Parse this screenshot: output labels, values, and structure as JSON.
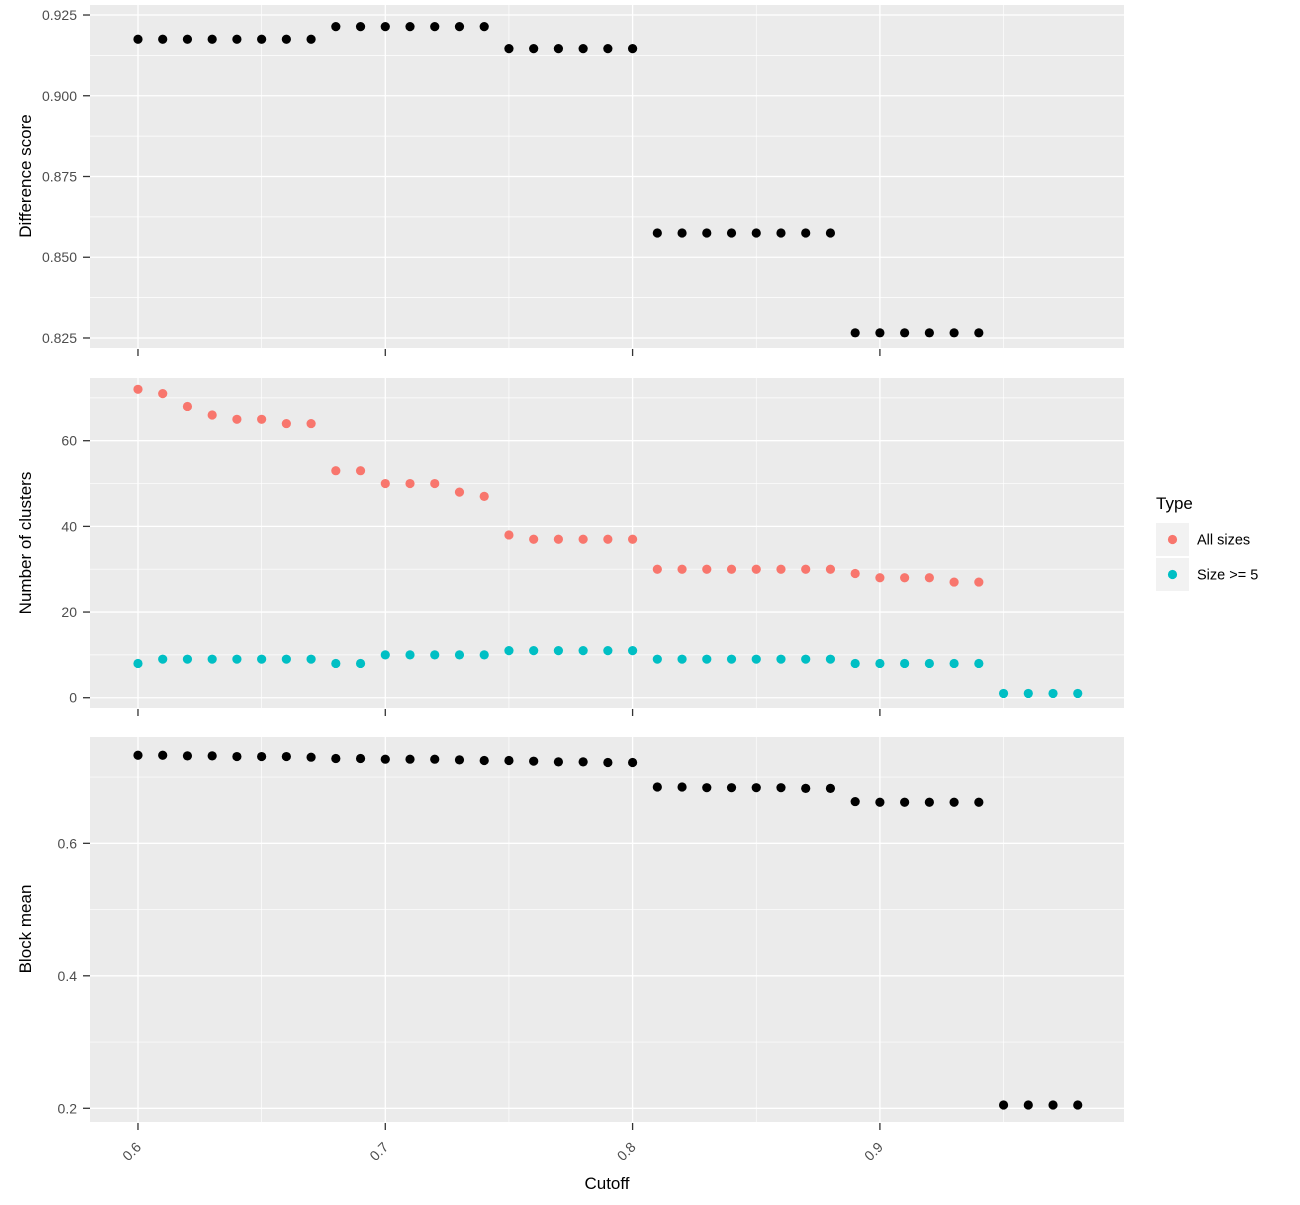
{
  "figure": {
    "background": "#FFFFFF",
    "panel_background": "#EBEBEB",
    "grid_color": "#FFFFFF",
    "tick_mark_color": "#333333",
    "tick_label_color": "#4D4D4D",
    "point_black": "#000000"
  },
  "x_axis": {
    "title": "Cutoff",
    "xlim": [
      0.5806,
      0.9987
    ],
    "major_ticks": [
      0.6,
      0.7,
      0.8,
      0.9
    ],
    "major_labels": [
      "0.6",
      "0.7",
      "0.8",
      "0.9"
    ],
    "minor_ticks": [
      0.65,
      0.75,
      0.85,
      0.95
    ]
  },
  "legend": {
    "title": "Type",
    "key_bg": "#F2F2F2",
    "items": [
      {
        "label": "All sizes",
        "color": "#F8766D"
      },
      {
        "label": "Size >= 5",
        "color": "#00BFC4"
      }
    ]
  },
  "chart_data": [
    {
      "type": "scatter",
      "ylabel": "Difference score",
      "ylim": [
        0.8219,
        0.9281
      ],
      "y_major_ticks": [
        0.925,
        0.9,
        0.875,
        0.85,
        0.825
      ],
      "y_tick_labels": [
        "0.925",
        "0.900",
        "0.875",
        "0.850",
        "0.825"
      ],
      "y_minor_ticks": [
        0.9125,
        0.8875,
        0.8625,
        0.8375
      ],
      "grid": true,
      "legend_position": "none",
      "series": [
        {
          "name": "Difference score",
          "color": "#000000",
          "x": [
            0.6,
            0.61,
            0.62,
            0.63,
            0.64,
            0.65,
            0.66,
            0.67,
            0.68,
            0.69,
            0.7,
            0.71,
            0.72,
            0.73,
            0.74,
            0.75,
            0.76,
            0.77,
            0.78,
            0.79,
            0.8,
            0.81,
            0.82,
            0.83,
            0.84,
            0.85,
            0.86,
            0.87,
            0.88,
            0.89,
            0.9,
            0.91,
            0.92,
            0.93,
            0.94
          ],
          "y": [
            0.9175,
            0.9175,
            0.9175,
            0.9175,
            0.9175,
            0.9175,
            0.9175,
            0.9175,
            0.9214,
            0.9214,
            0.9214,
            0.9214,
            0.9214,
            0.9214,
            0.9214,
            0.9146,
            0.9146,
            0.9146,
            0.9146,
            0.9146,
            0.9146,
            0.8575,
            0.8575,
            0.8575,
            0.8575,
            0.8575,
            0.8575,
            0.8575,
            0.8575,
            0.8266,
            0.8266,
            0.8266,
            0.8266,
            0.8266,
            0.8266
          ]
        }
      ]
    },
    {
      "type": "scatter",
      "ylabel": "Number of clusters",
      "ylim": [
        -2.4,
        74.64
      ],
      "y_major_ticks": [
        60,
        40,
        20,
        0
      ],
      "y_tick_labels": [
        "60",
        "40",
        "20",
        "0"
      ],
      "y_minor_ticks": [
        70,
        50,
        30,
        10
      ],
      "grid": true,
      "legend_position": "right",
      "series": [
        {
          "name": "All sizes",
          "color": "#F8766D",
          "x": [
            0.6,
            0.61,
            0.62,
            0.63,
            0.64,
            0.65,
            0.66,
            0.67,
            0.68,
            0.69,
            0.7,
            0.71,
            0.72,
            0.73,
            0.74,
            0.75,
            0.76,
            0.77,
            0.78,
            0.79,
            0.8,
            0.81,
            0.82,
            0.83,
            0.84,
            0.85,
            0.86,
            0.87,
            0.88,
            0.89,
            0.9,
            0.91,
            0.92,
            0.93,
            0.94
          ],
          "y": [
            72,
            71,
            68,
            66,
            65,
            65,
            64,
            64,
            53,
            53,
            50,
            50,
            50,
            48,
            47,
            38,
            37,
            37,
            37,
            37,
            37,
            30,
            30,
            30,
            30,
            30,
            30,
            30,
            30,
            29,
            28,
            28,
            28,
            27,
            27
          ]
        },
        {
          "name": "Size >= 5",
          "color": "#00BFC4",
          "x": [
            0.6,
            0.61,
            0.62,
            0.63,
            0.64,
            0.65,
            0.66,
            0.67,
            0.68,
            0.69,
            0.7,
            0.71,
            0.72,
            0.73,
            0.74,
            0.75,
            0.76,
            0.77,
            0.78,
            0.79,
            0.8,
            0.81,
            0.82,
            0.83,
            0.84,
            0.85,
            0.86,
            0.87,
            0.88,
            0.89,
            0.9,
            0.91,
            0.92,
            0.93,
            0.94,
            0.95,
            0.96,
            0.97,
            0.98
          ],
          "y": [
            8,
            9,
            9,
            9,
            9,
            9,
            9,
            9,
            8,
            8,
            10,
            10,
            10,
            10,
            10,
            11,
            11,
            11,
            11,
            11,
            11,
            9,
            9,
            9,
            9,
            9,
            9,
            9,
            9,
            8,
            8,
            8,
            8,
            8,
            8,
            1,
            1,
            1,
            1
          ]
        }
      ]
    },
    {
      "type": "scatter",
      "ylabel": "Block mean",
      "ylim": [
        0.1793,
        0.7605
      ],
      "y_major_ticks": [
        0.6,
        0.4,
        0.2
      ],
      "y_tick_labels": [
        "0.6",
        "0.4",
        "0.2"
      ],
      "y_minor_ticks": [
        0.7,
        0.5,
        0.3
      ],
      "grid": true,
      "legend_position": "none",
      "series": [
        {
          "name": "Block mean",
          "color": "#000000",
          "x": [
            0.6,
            0.61,
            0.62,
            0.63,
            0.64,
            0.65,
            0.66,
            0.67,
            0.68,
            0.69,
            0.7,
            0.71,
            0.72,
            0.73,
            0.74,
            0.75,
            0.76,
            0.77,
            0.78,
            0.79,
            0.8,
            0.81,
            0.82,
            0.83,
            0.84,
            0.85,
            0.86,
            0.87,
            0.88,
            0.89,
            0.9,
            0.91,
            0.92,
            0.93,
            0.94,
            0.95,
            0.96,
            0.97,
            0.98
          ],
          "y": [
            0.733,
            0.733,
            0.732,
            0.732,
            0.731,
            0.731,
            0.731,
            0.73,
            0.728,
            0.728,
            0.727,
            0.727,
            0.727,
            0.726,
            0.725,
            0.725,
            0.724,
            0.723,
            0.723,
            0.722,
            0.722,
            0.685,
            0.685,
            0.684,
            0.684,
            0.684,
            0.684,
            0.683,
            0.683,
            0.663,
            0.662,
            0.662,
            0.662,
            0.662,
            0.662,
            0.205,
            0.205,
            0.205,
            0.205
          ]
        }
      ]
    }
  ]
}
